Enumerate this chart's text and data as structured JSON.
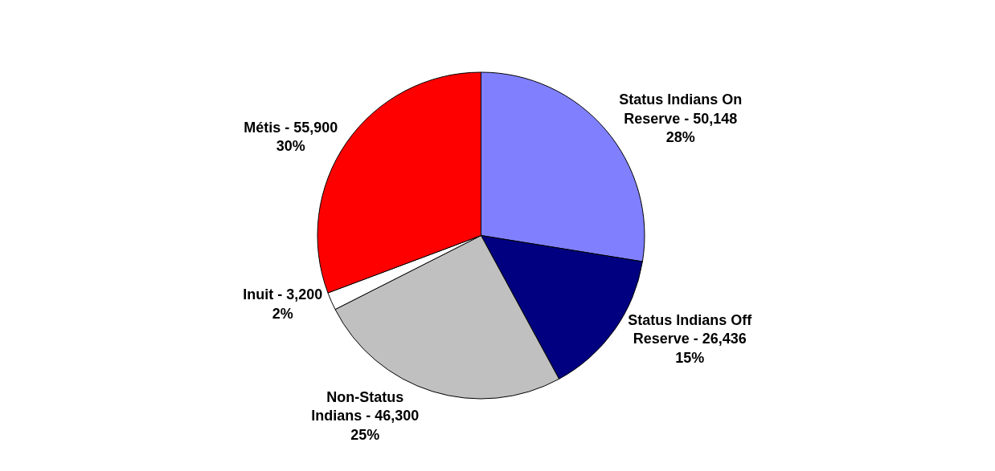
{
  "chart_data": {
    "type": "pie",
    "categories": [
      "Status Indians On Reserve",
      "Status Indians Off Reserve",
      "Non-Status Indians",
      "Inuit",
      "Métis"
    ],
    "values": [
      50148,
      26436,
      46300,
      3200,
      55900
    ],
    "value_labels": [
      "50,148\n28%",
      "26,436\n15%",
      "46,300\n25%",
      "3,200\n2%",
      "55,900\n30%"
    ],
    "colors": [
      "#8080ff",
      "#000080",
      "#c0c0c0",
      "#ffffff",
      "#ff0000"
    ],
    "legend": false
  }
}
